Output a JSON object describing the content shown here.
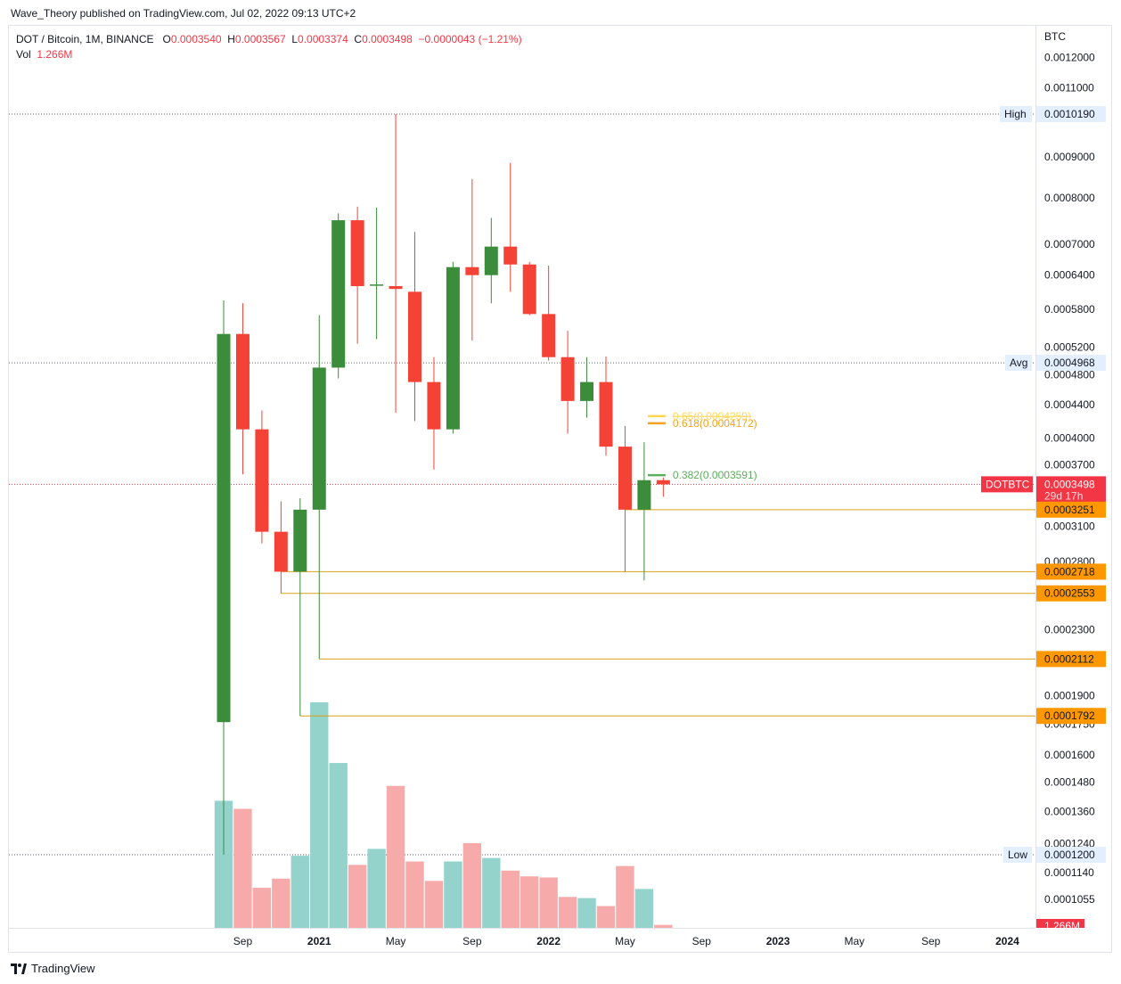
{
  "header": {
    "published": "Wave_Theory published on TradingView.com, Jul 02, 2022 09:13 UTC+2"
  },
  "legend": {
    "symbol": "DOT / Bitcoin, 1M, BINANCE",
    "open_label": "O",
    "open": "0.0003540",
    "high_label": "H",
    "high": "0.0003567",
    "low_label": "L",
    "low": "0.0003374",
    "close_label": "C",
    "close": "0.0003498",
    "change": "−0.0000043 (−1.21%)",
    "vol_label": "Vol",
    "vol": "1.266M"
  },
  "footer": {
    "brand": "TradingView"
  },
  "colors": {
    "up": "#3b8c3b",
    "down": "#f44336",
    "vol_up": "#93d3cc",
    "vol_down": "#f6aaa9",
    "support": "#d9a21b",
    "support_tag": "#ff9800",
    "price_tag": "#f23645",
    "fib_382": "#5caf5a",
    "fib_618": "#f3a21b",
    "fib_65": "#ffd54f"
  },
  "chart_data": {
    "type": "candlestick",
    "symbol": "DOTBTC",
    "interval": "1M",
    "exchange": "BINANCE",
    "price_unit": "BTC",
    "y_scale": "log",
    "price_axis_labels": [
      "BTC",
      "0.0012000",
      "0.0011000",
      "0.0009000",
      "0.0008000",
      "0.0007000",
      "0.0006400",
      "0.0005800",
      "0.0005200",
      "0.0004800",
      "0.0004400",
      "0.0004000",
      "0.0003700",
      "0.0003100",
      "0.0002800",
      "0.0002300",
      "0.0001900",
      "0.0001750",
      "0.0001600",
      "0.0001480",
      "0.0001360",
      "0.0001240",
      "0.0001140",
      "0.0001055"
    ],
    "time_axis_labels": [
      {
        "text": "Sep",
        "bold": false
      },
      {
        "text": "2021",
        "bold": true
      },
      {
        "text": "May",
        "bold": false
      },
      {
        "text": "Sep",
        "bold": false
      },
      {
        "text": "2022",
        "bold": true
      },
      {
        "text": "May",
        "bold": false
      },
      {
        "text": "Sep",
        "bold": false
      },
      {
        "text": "2023",
        "bold": true
      },
      {
        "text": "May",
        "bold": false
      },
      {
        "text": "Sep",
        "bold": false
      },
      {
        "text": "2024",
        "bold": true
      }
    ],
    "candles": [
      {
        "date": "2020-08",
        "open": 0.000176,
        "high": 0.000595,
        "low": 0.00012,
        "close": 0.00054,
        "volume": 0.555
      },
      {
        "date": "2020-09",
        "open": 0.00054,
        "high": 0.00059,
        "low": 0.00036,
        "close": 0.00041,
        "volume": 0.52
      },
      {
        "date": "2020-10",
        "open": 0.00041,
        "high": 0.000433,
        "low": 0.000295,
        "close": 0.000305,
        "volume": 0.175
      },
      {
        "date": "2020-11",
        "open": 0.000305,
        "high": 0.000333,
        "low": 0.0002553,
        "close": 0.0002718,
        "volume": 0.215
      },
      {
        "date": "2020-12",
        "open": 0.0002718,
        "high": 0.000336,
        "low": 0.0001792,
        "close": 0.0003251,
        "volume": 0.315
      },
      {
        "date": "2021-01",
        "open": 0.0003251,
        "high": 0.00057,
        "low": 0.0002112,
        "close": 0.00049,
        "volume": 0.985
      },
      {
        "date": "2021-02",
        "open": 0.00049,
        "high": 0.000765,
        "low": 0.000475,
        "close": 0.00075,
        "volume": 0.72
      },
      {
        "date": "2021-03",
        "open": 0.00075,
        "high": 0.00078,
        "low": 0.000525,
        "close": 0.00062,
        "volume": 0.275
      },
      {
        "date": "2021-04",
        "open": 0.000621,
        "high": 0.000778,
        "low": 0.000532,
        "close": 0.000623,
        "volume": 0.345
      },
      {
        "date": "2021-05",
        "open": 0.00062,
        "high": 0.001019,
        "low": 0.00043,
        "close": 0.000615,
        "volume": 0.62
      },
      {
        "date": "2021-06",
        "open": 0.00061,
        "high": 0.000725,
        "low": 0.00042,
        "close": 0.00047,
        "volume": 0.29
      },
      {
        "date": "2021-07",
        "open": 0.00047,
        "high": 0.000505,
        "low": 0.000365,
        "close": 0.00041,
        "volume": 0.205
      },
      {
        "date": "2021-08",
        "open": 0.00041,
        "high": 0.000665,
        "low": 0.000405,
        "close": 0.000655,
        "volume": 0.29
      },
      {
        "date": "2021-09",
        "open": 0.000655,
        "high": 0.000845,
        "low": 0.00053,
        "close": 0.00064,
        "volume": 0.37
      },
      {
        "date": "2021-10",
        "open": 0.00064,
        "high": 0.000755,
        "low": 0.00059,
        "close": 0.000695,
        "volume": 0.305
      },
      {
        "date": "2021-11",
        "open": 0.000695,
        "high": 0.000885,
        "low": 0.00061,
        "close": 0.00066,
        "volume": 0.25
      },
      {
        "date": "2021-12",
        "open": 0.00066,
        "high": 0.000665,
        "low": 0.00057,
        "close": 0.000572,
        "volume": 0.225
      },
      {
        "date": "2022-01",
        "open": 0.000572,
        "high": 0.000658,
        "low": 0.0005,
        "close": 0.000505,
        "volume": 0.22
      },
      {
        "date": "2022-02",
        "open": 0.000505,
        "high": 0.000545,
        "low": 0.000405,
        "close": 0.000445,
        "volume": 0.135
      },
      {
        "date": "2022-03",
        "open": 0.000445,
        "high": 0.000505,
        "low": 0.000424,
        "close": 0.00047,
        "volume": 0.13
      },
      {
        "date": "2022-04",
        "open": 0.00047,
        "high": 0.000506,
        "low": 0.00038,
        "close": 0.00039,
        "volume": 0.095
      },
      {
        "date": "2022-05",
        "open": 0.00039,
        "high": 0.000414,
        "low": 0.0002718,
        "close": 0.0003251,
        "volume": 0.27
      },
      {
        "date": "2022-06",
        "open": 0.0003251,
        "high": 0.000395,
        "low": 0.000265,
        "close": 0.000354,
        "volume": 0.17
      },
      {
        "date": "2022-07",
        "open": 0.000354,
        "high": 0.0003567,
        "low": 0.0003374,
        "close": 0.0003498,
        "volume": 0.013
      }
    ],
    "volume_label": "1.266M",
    "markers": {
      "high": {
        "label": "High",
        "value": "0.0010190",
        "price": 0.001019
      },
      "avg": {
        "label": "Avg",
        "value": "0.0004968",
        "price": 0.0004968
      },
      "low": {
        "label": "Low",
        "value": "0.0001200",
        "price": 0.00012
      },
      "current": {
        "label": "DOTBTC",
        "value": "0.0003498",
        "countdown": "29d 17h",
        "price": 0.0003498
      }
    },
    "support_levels": [
      {
        "value": "0.0003251",
        "price": 0.0003251,
        "from": "2022-05"
      },
      {
        "value": "0.0002718",
        "price": 0.0002718,
        "from": "2020-11"
      },
      {
        "value": "0.0002553",
        "price": 0.0002553,
        "from": "2020-11"
      },
      {
        "value": "0.0002112",
        "price": 0.0002112,
        "from": "2021-01"
      },
      {
        "value": "0.0001792",
        "price": 0.0001792,
        "from": "2020-12"
      }
    ],
    "fib_levels": [
      {
        "label": "0.382(0.0003591)",
        "price": 0.0003591,
        "color": "#5caf5a"
      },
      {
        "label": "0.618(0.0004172)",
        "price": 0.0004172,
        "color": "#f3a21b"
      },
      {
        "label": "0.65(0.0004259)",
        "price": 0.0004259,
        "color": "#ffd54f"
      }
    ]
  }
}
